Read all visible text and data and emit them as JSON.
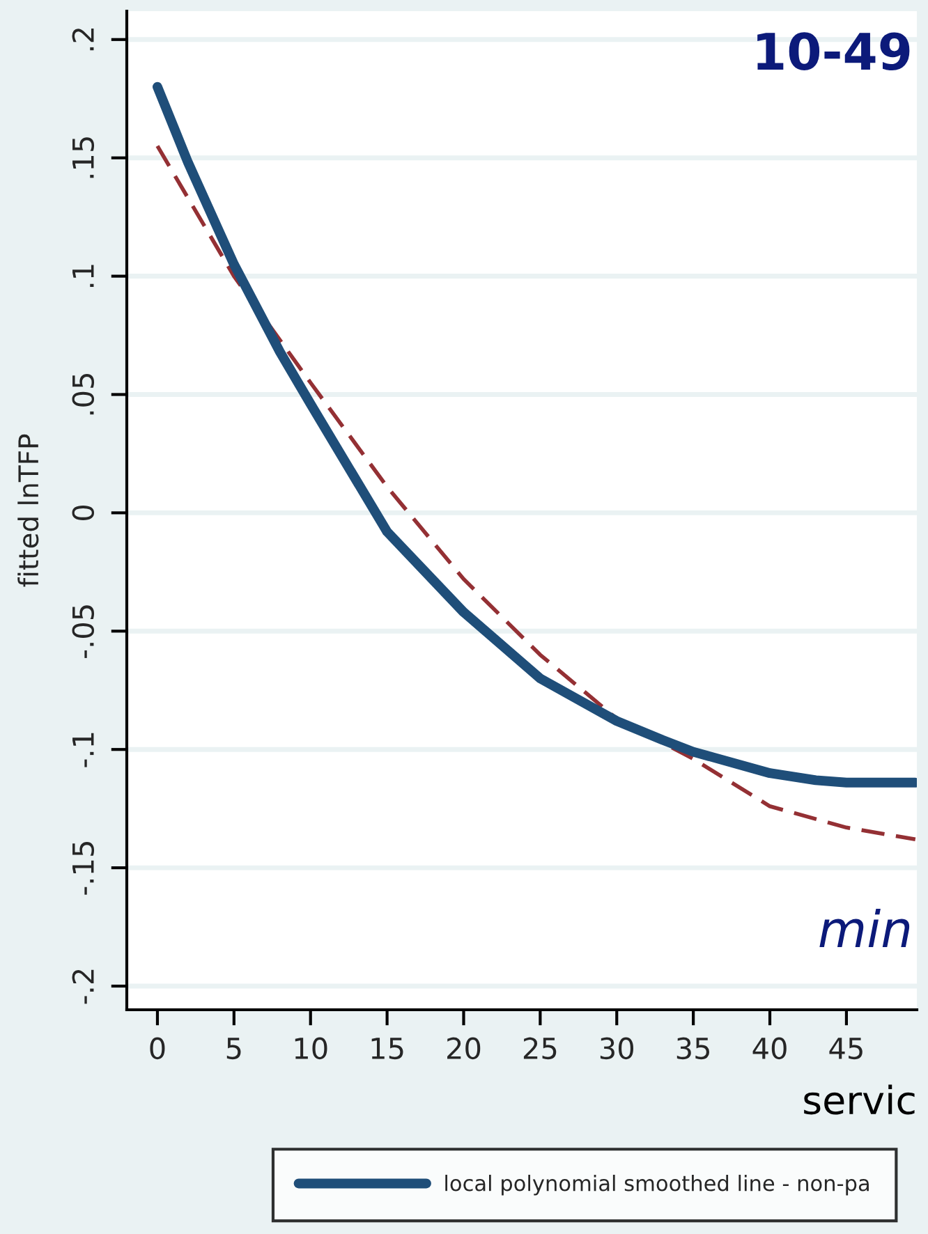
{
  "chart_data": {
    "type": "line",
    "title": "10-49",
    "xlabel": "servic",
    "ylabel": "fitted lnTFP",
    "annotations": [
      "min"
    ],
    "series": [
      {
        "name": "local polynomial smoothed line - non-pa",
        "color": "#1f4e79",
        "line_style": "solid",
        "x": [
          0,
          2,
          5,
          8,
          10,
          15,
          20,
          25,
          30,
          33,
          35,
          40,
          43,
          45,
          49.5
        ],
        "values": [
          0.18,
          0.148,
          0.105,
          0.068,
          0.046,
          -0.008,
          -0.042,
          -0.07,
          -0.088,
          -0.096,
          -0.101,
          -0.11,
          -0.113,
          -0.114,
          -0.114
        ]
      },
      {
        "color": "#943034",
        "line_style": "dashed",
        "x": [
          0,
          5,
          10,
          15,
          20,
          25,
          30,
          35,
          40,
          45,
          49.5
        ],
        "values": [
          0.155,
          0.1,
          0.055,
          0.011,
          -0.028,
          -0.06,
          -0.087,
          -0.104,
          -0.124,
          -0.133,
          -0.138
        ]
      }
    ],
    "xlim": [
      -2,
      49.6
    ],
    "ylim": [
      -0.21,
      0.212
    ],
    "xticks": [
      0,
      5,
      10,
      15,
      20,
      25,
      30,
      35,
      40,
      45
    ],
    "yticks": [
      {
        "value": 0.2,
        "label": ".2"
      },
      {
        "value": 0.15,
        "label": ".15"
      },
      {
        "value": 0.1,
        "label": ".1"
      },
      {
        "value": 0.05,
        "label": ".05"
      },
      0,
      {
        "value": -0.05,
        "label": "-.05"
      },
      {
        "value": -0.1,
        "label": "-.1"
      },
      {
        "value": -0.15,
        "label": "-.15"
      },
      {
        "value": -0.2,
        "label": "-.2"
      }
    ],
    "grid": "y",
    "legend": "bottom"
  }
}
